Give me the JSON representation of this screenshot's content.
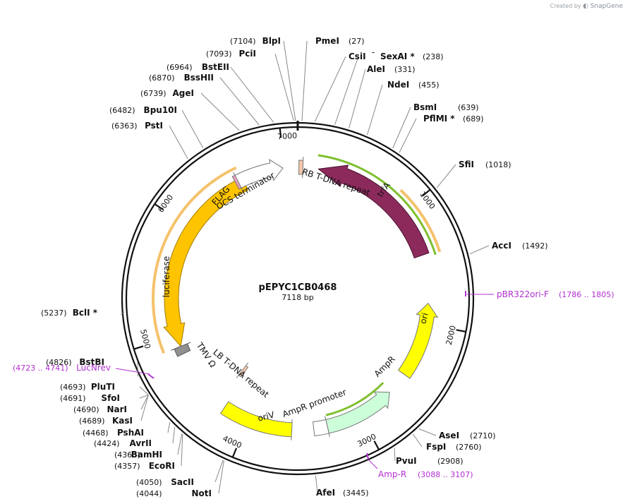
{
  "watermark": {
    "text": "Created by",
    "brand": "SnapGene"
  },
  "plasmid": {
    "name": "pEPYC1CB0468",
    "length_text": "7118 bp",
    "length": 7118
  },
  "tick_labels": [
    "1000",
    "2000",
    "3000",
    "4000",
    "5000",
    "6000",
    "7000"
  ],
  "restriction_sites": [
    {
      "name": "BlpI",
      "pos": "(7104)"
    },
    {
      "name": "PmeI",
      "pos": "(27)"
    },
    {
      "name": "PciI",
      "pos": "(7093)"
    },
    {
      "name": "CsiI",
      "pos": ""
    },
    {
      "name": "SexAI *",
      "pos": "(238)"
    },
    {
      "name": "BstEII",
      "pos": "(6964)"
    },
    {
      "name": "AleI",
      "pos": "(331)"
    },
    {
      "name": "BssHII",
      "pos": "(6870)"
    },
    {
      "name": "NdeI",
      "pos": "(455)"
    },
    {
      "name": "AgeI",
      "pos": "(6739)"
    },
    {
      "name": "BsmI",
      "pos": "(639)"
    },
    {
      "name": "Bpu10I",
      "pos": "(6482)"
    },
    {
      "name": "PflMI *",
      "pos": "(689)"
    },
    {
      "name": "PstI",
      "pos": "(6363)"
    },
    {
      "name": "SfiI",
      "pos": "(1018)"
    },
    {
      "name": "AccI",
      "pos": "(1492)"
    },
    {
      "name": "BclI *",
      "pos": "(5237)"
    },
    {
      "name": "BstBI",
      "pos": "(4826)"
    },
    {
      "name": "PluTI",
      "pos": "(4693)"
    },
    {
      "name": "SfoI",
      "pos": "(4691)"
    },
    {
      "name": "NarI",
      "pos": "(4690)"
    },
    {
      "name": "KasI",
      "pos": "(4689)"
    },
    {
      "name": "PshAI",
      "pos": "(4468)"
    },
    {
      "name": "AvrII",
      "pos": "(4424)"
    },
    {
      "name": "BamHI",
      "pos": "(4363)"
    },
    {
      "name": "EcoRI",
      "pos": "(4357)"
    },
    {
      "name": "SacII",
      "pos": "(4050)"
    },
    {
      "name": "NotI",
      "pos": "(4044)"
    },
    {
      "name": "AfeI",
      "pos": "(3445)"
    },
    {
      "name": "AseI",
      "pos": "(2710)"
    },
    {
      "name": "FspI",
      "pos": "(2760)"
    },
    {
      "name": "PvuI",
      "pos": "(2908)"
    }
  ],
  "primers": [
    {
      "name": "pBR322ori-F",
      "range": "(1786 .. 1805)"
    },
    {
      "name": "LucNrev",
      "range": "(4723 .. 4741)"
    },
    {
      "name": "Amp-R",
      "range": "(3088 .. 3107)"
    }
  ],
  "features": {
    "rb": "RB T-DNA repeat",
    "trfa": "trfA",
    "ocs": "OCS terminator",
    "flag": "FLAG",
    "luciferase": "luciferase",
    "tmv": "TMV Ω",
    "lb": "LB T-DNA repeat",
    "oriv": "oriV",
    "amp_promoter": "AmpR promoter",
    "ampr": "AmpR",
    "ori": "ori"
  },
  "colors": {
    "trfa": "#8c2a5c",
    "luciferase": "#ffc400",
    "yellow": "#ffff00",
    "ampr": "#ccffd9",
    "primer": "#b22fd0",
    "orf_green": "#7fbf2f",
    "orf_orange": "#f5c26b"
  }
}
